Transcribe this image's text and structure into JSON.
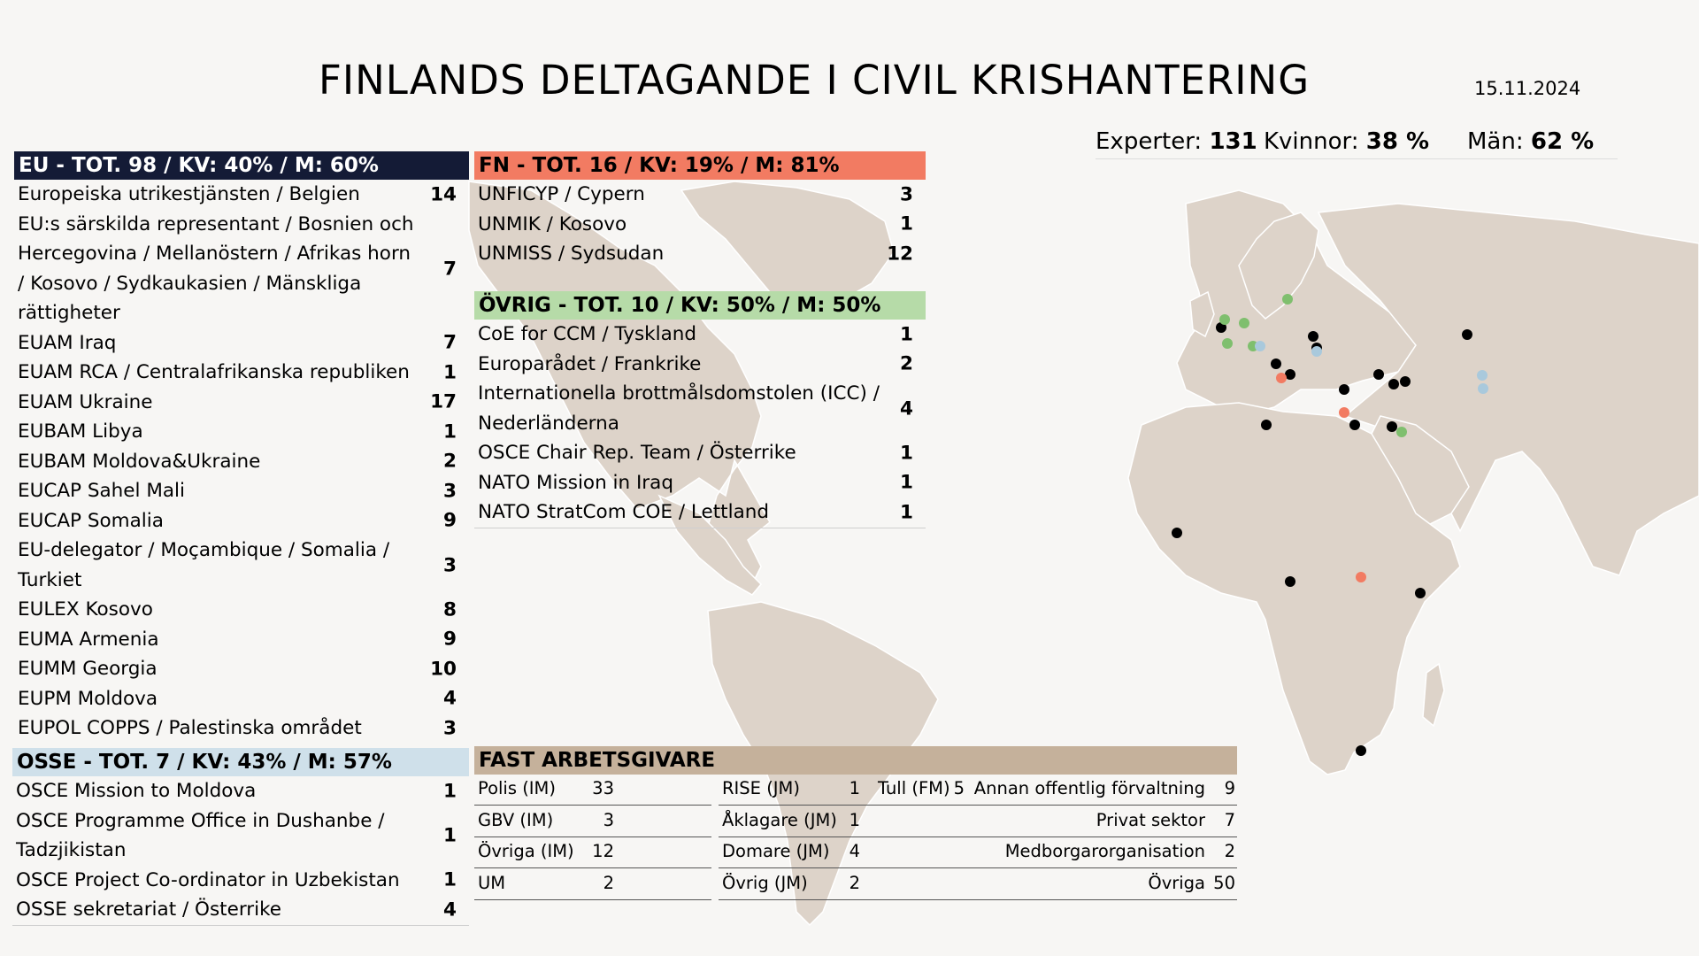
{
  "header": {
    "title": "FINLANDS DELTAGANDE I CIVIL KRISHANTERING",
    "date": "15.11.2024"
  },
  "summary": {
    "experts_label": "Experter:",
    "experts_value": "131",
    "women_label": "Kvinnor:",
    "women_value": "38 %",
    "men_label": "Män:",
    "men_value": "62 %"
  },
  "colors": {
    "eu": "#141b36",
    "fn": "#f27b62",
    "ovrig": "#b6dba8",
    "osse": "#cfe0ea",
    "fast": "#c5b19b",
    "land": "#ddd3c9",
    "marker_eu": "#000000",
    "marker_fn": "#f27b62",
    "marker_ovrig": "#7fbf6e",
    "marker_osse": "#a9c9dc"
  },
  "eu": {
    "header": "EU - TOT. 98 / KV: 40% / M: 60%",
    "rows": [
      {
        "label": "Europeiska utrikestjänsten / Belgien",
        "value": "14"
      },
      {
        "label": "EU:s särskilda representant / Bosnien och Hercegovina / Mellanöstern / Afrikas horn / Kosovo / Sydkaukasien / Mänskliga rättigheter",
        "value": "7"
      },
      {
        "label": "EUAM Iraq",
        "value": "7"
      },
      {
        "label": "EUAM RCA / Centralafrikanska republiken",
        "value": "1"
      },
      {
        "label": "EUAM Ukraine",
        "value": "17"
      },
      {
        "label": "EUBAM Libya",
        "value": "1"
      },
      {
        "label": "EUBAM Moldova&Ukraine",
        "value": "2"
      },
      {
        "label": "EUCAP Sahel Mali",
        "value": "3"
      },
      {
        "label": "EUCAP Somalia",
        "value": "9"
      },
      {
        "label": "EU-delegator / Moçambique / Somalia / Turkiet",
        "value": "3"
      },
      {
        "label": "EULEX Kosovo",
        "value": "8"
      },
      {
        "label": "EUMA Armenia",
        "value": "9"
      },
      {
        "label": "EUMM Georgia",
        "value": "10"
      },
      {
        "label": "EUPM Moldova",
        "value": "4"
      },
      {
        "label": "EUPOL COPPS / Palestinska området",
        "value": "3"
      }
    ]
  },
  "fn": {
    "header": "FN - TOT. 16 / KV: 19% / M: 81%",
    "rows": [
      {
        "label": "UNFICYP / Cypern",
        "value": "3"
      },
      {
        "label": "UNMIK / Kosovo",
        "value": "1"
      },
      {
        "label": "UNMISS / Sydsudan",
        "value": "12"
      }
    ]
  },
  "ovrig": {
    "header": "ÖVRIG - TOT. 10 / KV: 50% / M: 50%",
    "rows": [
      {
        "label": "CoE for CCM / Tyskland",
        "value": "1"
      },
      {
        "label": "Europarådet / Frankrike",
        "value": "2"
      },
      {
        "label": "Internationella brottmålsdomstolen (ICC) / Nederländerna",
        "value": "4"
      },
      {
        "label": "OSCE Chair Rep. Team / Österrike",
        "value": "1"
      },
      {
        "label": "NATO Mission in Iraq",
        "value": "1"
      },
      {
        "label": "NATO StratCom COE / Lettland",
        "value": "1"
      }
    ]
  },
  "osse": {
    "header": "OSSE - TOT. 7 / KV: 43% / M: 57%",
    "rows": [
      {
        "label": "OSCE Mission to Moldova",
        "value": "1"
      },
      {
        "label": "OSCE Programme Office in Dushanbe / Tadzjikistan",
        "value": "1"
      },
      {
        "label": "OSCE Project Co-ordinator in Uzbekistan",
        "value": "1"
      },
      {
        "label": "OSSE sekretariat / Österrike",
        "value": "4"
      }
    ]
  },
  "fast": {
    "header": "FAST ARBETSGIVARE",
    "col1": [
      {
        "label": "Polis (IM)",
        "value": "33"
      },
      {
        "label": "GBV (IM)",
        "value": "3"
      },
      {
        "label": "Övriga (IM)",
        "value": "12"
      },
      {
        "label": "UM",
        "value": "2"
      }
    ],
    "col2": [
      {
        "label": "RISE (JM)",
        "value": "1"
      },
      {
        "label": "Åklagare (JM)",
        "value": "1"
      },
      {
        "label": "Domare (JM)",
        "value": "4"
      },
      {
        "label": "Övrig (JM)",
        "value": "2"
      }
    ],
    "col3": [
      {
        "label": "Tull (FM)",
        "value": "5"
      }
    ],
    "col4": [
      {
        "label": "Annan offentlig förvaltning",
        "value": "9"
      },
      {
        "label": "Privat sektor",
        "value": "7"
      },
      {
        "label": "Medborgarorganisation",
        "value": "2"
      },
      {
        "label": "Övriga",
        "value": "50"
      }
    ]
  },
  "markers": [
    {
      "mission": "eu",
      "place": "Belgien"
    },
    {
      "mission": "eu",
      "place": "Ukraine"
    },
    {
      "mission": "eu",
      "place": "Moldova"
    },
    {
      "mission": "eu",
      "place": "Kosovo"
    },
    {
      "mission": "eu",
      "place": "Georgia"
    },
    {
      "mission": "eu",
      "place": "Armenia"
    },
    {
      "mission": "eu",
      "place": "Turkiet"
    },
    {
      "mission": "eu",
      "place": "Libya"
    },
    {
      "mission": "eu",
      "place": "Palestinska området"
    },
    {
      "mission": "eu",
      "place": "Iraq"
    },
    {
      "mission": "eu",
      "place": "Mali"
    },
    {
      "mission": "eu",
      "place": "Centralafrikanska republiken"
    },
    {
      "mission": "eu",
      "place": "Somalia"
    },
    {
      "mission": "eu",
      "place": "Moçambique"
    },
    {
      "mission": "eu",
      "place": "Bosnien och Hercegovina"
    },
    {
      "mission": "eu",
      "place": "Kazakstan"
    },
    {
      "mission": "fn",
      "place": "Kosovo"
    },
    {
      "mission": "fn",
      "place": "Cypern"
    },
    {
      "mission": "fn",
      "place": "Sydsudan"
    },
    {
      "mission": "ovrig",
      "place": "Lettland"
    },
    {
      "mission": "ovrig",
      "place": "Nederländerna"
    },
    {
      "mission": "ovrig",
      "place": "Tyskland"
    },
    {
      "mission": "ovrig",
      "place": "Frankrike"
    },
    {
      "mission": "ovrig",
      "place": "Österrike"
    },
    {
      "mission": "ovrig",
      "place": "Iraq"
    },
    {
      "mission": "osse",
      "place": "Österrike"
    },
    {
      "mission": "osse",
      "place": "Moldova"
    },
    {
      "mission": "osse",
      "place": "Tadzjikistan"
    },
    {
      "mission": "osse",
      "place": "Uzbekistan"
    }
  ]
}
